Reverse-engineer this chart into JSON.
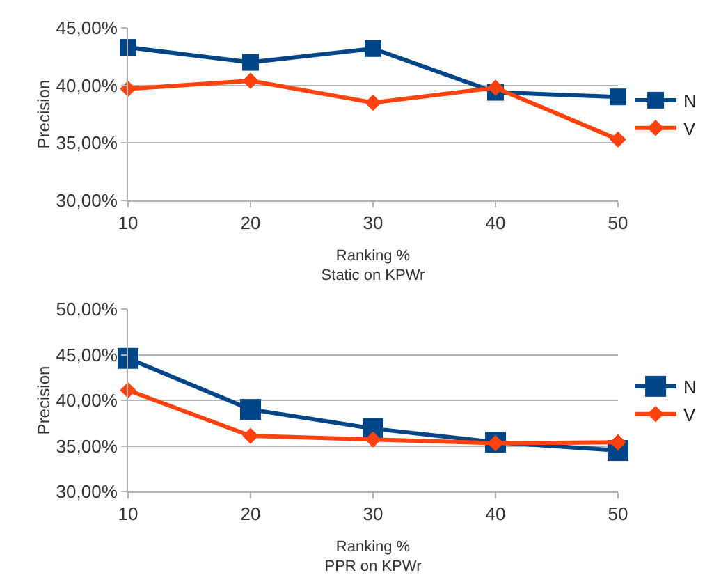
{
  "chart_data": [
    {
      "type": "line",
      "xlabel": "Ranking %",
      "ylabel": "Precision",
      "annotations": [
        "Static on KPWr"
      ],
      "x": [
        10,
        20,
        30,
        40,
        50
      ],
      "xlim": [
        10,
        50
      ],
      "xticks": [
        10,
        20,
        30,
        40,
        50
      ],
      "ylim": [
        30,
        45
      ],
      "yticks": [
        {
          "value": 30,
          "label": "30,00%"
        },
        {
          "value": 35,
          "label": "35,00%"
        },
        {
          "value": 40,
          "label": "40,00%"
        },
        {
          "value": 45,
          "label": "45,00%"
        }
      ],
      "grid": "y",
      "legend": "right",
      "line_style": "solid",
      "series": [
        {
          "name": "N",
          "color": "#004586",
          "marker": "square",
          "values": [
            43.3,
            42.0,
            43.2,
            39.4,
            39.0
          ]
        },
        {
          "name": "V",
          "color": "#ff420e",
          "marker": "diamond",
          "values": [
            39.7,
            40.4,
            38.5,
            39.8,
            35.3
          ]
        }
      ]
    },
    {
      "type": "line",
      "xlabel": "Ranking %",
      "ylabel": "Precision",
      "annotations": [
        "PPR on KPWr"
      ],
      "x": [
        10,
        20,
        30,
        40,
        50
      ],
      "xlim": [
        10,
        50
      ],
      "xticks": [
        10,
        20,
        30,
        40,
        50
      ],
      "ylim": [
        30,
        50
      ],
      "yticks": [
        {
          "value": 30,
          "label": "30,00%"
        },
        {
          "value": 35,
          "label": "35,00%"
        },
        {
          "value": 40,
          "label": "40,00%"
        },
        {
          "value": 45,
          "label": "45,00%"
        },
        {
          "value": 50,
          "label": "50,00%"
        }
      ],
      "grid": "y",
      "legend": "right",
      "line_style": "solid",
      "series": [
        {
          "name": "N",
          "color": "#004586",
          "marker": "square",
          "values": [
            44.6,
            39.0,
            36.9,
            35.4,
            34.5
          ]
        },
        {
          "name": "V",
          "color": "#ff420e",
          "marker": "diamond",
          "values": [
            41.1,
            36.1,
            35.7,
            35.3,
            35.4
          ]
        }
      ]
    }
  ]
}
